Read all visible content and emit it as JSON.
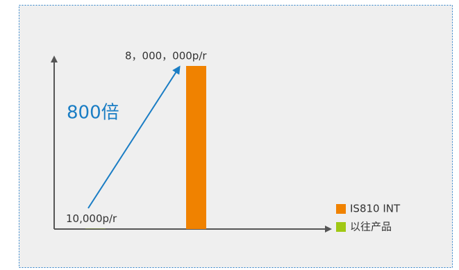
{
  "chart_data": {
    "type": "bar",
    "categories": [
      null
    ],
    "series": [
      {
        "name": "以往产品",
        "color": "#a0c814",
        "values": [
          10000
        ],
        "value_labels": [
          "10,000p/r"
        ]
      },
      {
        "name": "IS810 INT",
        "color": "#f08200",
        "values": [
          8000000
        ],
        "value_labels": [
          "8，000，000p/r"
        ]
      }
    ],
    "ylim": [
      0,
      8000000
    ],
    "annotation": "800倍"
  }
}
